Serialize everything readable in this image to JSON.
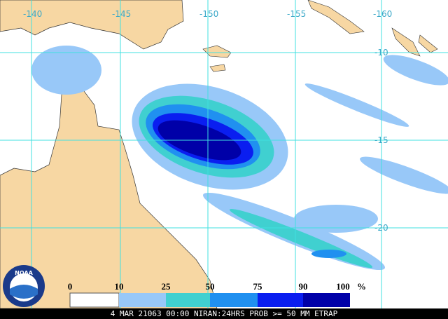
{
  "map": {
    "lon_labels": [
      "-140",
      "-145",
      "-150",
      "-155",
      "-160"
    ],
    "lat_labels": [
      "-10",
      "-15",
      "-20"
    ],
    "legend": {
      "labels": [
        "0",
        "10",
        "25",
        "50",
        "75",
        "90",
        "100"
      ],
      "unit": "%"
    },
    "logo": "NOAA",
    "caption": "4 MAR 21063 00:00 NIRAN:24HRS PROB >= 50 MM ETRAP"
  }
}
